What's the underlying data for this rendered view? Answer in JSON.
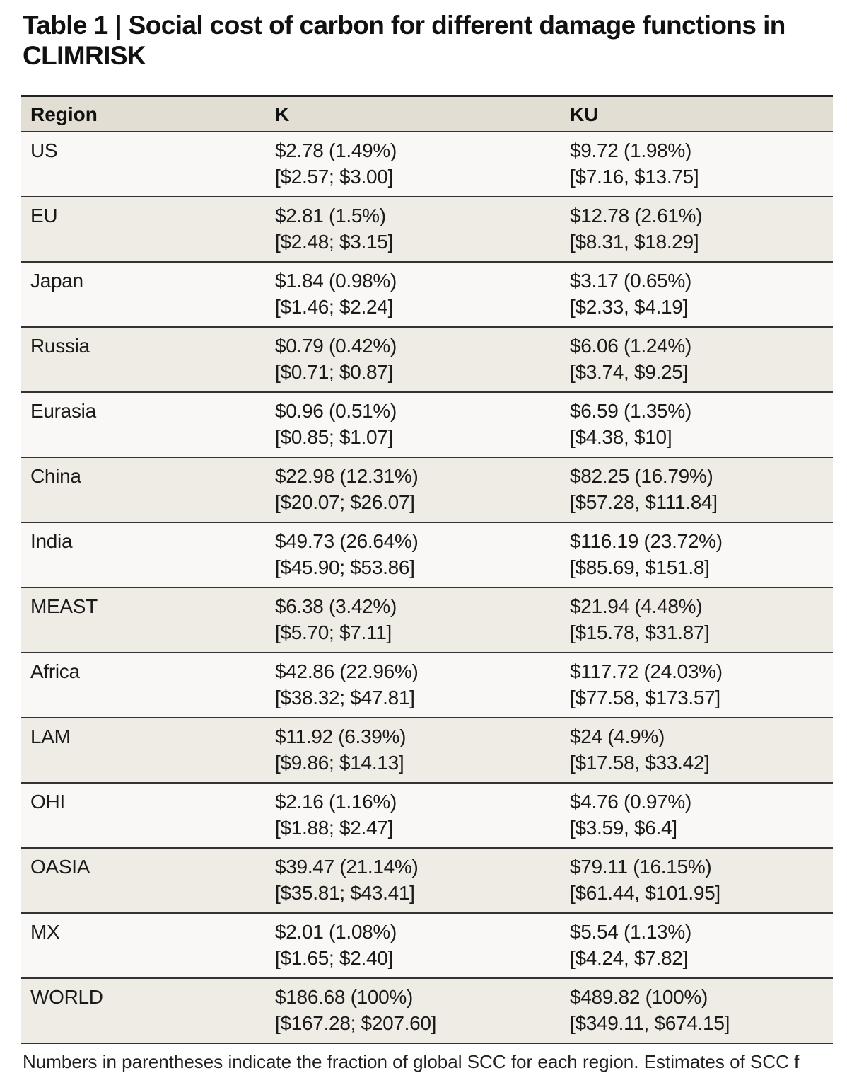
{
  "title": "Table 1 | Social cost of carbon for different damage functions in CLIMRISK",
  "table": {
    "headers": [
      "Region",
      "K",
      "KU"
    ],
    "rows": [
      {
        "region": "US",
        "k_value": "$2.78 (1.49%)",
        "k_range": "[$2.57; $3.00]",
        "ku_value": "$9.72 (1.98%)",
        "ku_range": "[$7.16, $13.75]"
      },
      {
        "region": "EU",
        "k_value": "$2.81 (1.5%)",
        "k_range": "[$2.48; $3.15]",
        "ku_value": "$12.78 (2.61%)",
        "ku_range": "[$8.31, $18.29]"
      },
      {
        "region": "Japan",
        "k_value": "$1.84 (0.98%)",
        "k_range": "[$1.46; $2.24]",
        "ku_value": "$3.17 (0.65%)",
        "ku_range": "[$2.33, $4.19]"
      },
      {
        "region": "Russia",
        "k_value": "$0.79 (0.42%)",
        "k_range": "[$0.71; $0.87]",
        "ku_value": "$6.06 (1.24%)",
        "ku_range": "[$3.74, $9.25]"
      },
      {
        "region": "Eurasia",
        "k_value": "$0.96 (0.51%)",
        "k_range": "[$0.85; $1.07]",
        "ku_value": "$6.59 (1.35%)",
        "ku_range": "[$4.38, $10]"
      },
      {
        "region": "China",
        "k_value": "$22.98 (12.31%)",
        "k_range": "[$20.07; $26.07]",
        "ku_value": "$82.25 (16.79%)",
        "ku_range": "[$57.28, $111.84]"
      },
      {
        "region": "India",
        "k_value": "$49.73 (26.64%)",
        "k_range": "[$45.90; $53.86]",
        "ku_value": "$116.19 (23.72%)",
        "ku_range": "[$85.69, $151.8]"
      },
      {
        "region": "MEAST",
        "k_value": "$6.38 (3.42%)",
        "k_range": "[$5.70; $7.11]",
        "ku_value": "$21.94 (4.48%)",
        "ku_range": "[$15.78, $31.87]"
      },
      {
        "region": "Africa",
        "k_value": "$42.86 (22.96%)",
        "k_range": "[$38.32; $47.81]",
        "ku_value": "$117.72 (24.03%)",
        "ku_range": "[$77.58, $173.57]"
      },
      {
        "region": "LAM",
        "k_value": "$11.92 (6.39%)",
        "k_range": "[$9.86; $14.13]",
        "ku_value": "$24 (4.9%)",
        "ku_range": "[$17.58, $33.42]"
      },
      {
        "region": "OHI",
        "k_value": "$2.16 (1.16%)",
        "k_range": "[$1.88; $2.47]",
        "ku_value": "$4.76 (0.97%)",
        "ku_range": "[$3.59, $6.4]"
      },
      {
        "region": "OASIA",
        "k_value": "$39.47 (21.14%)",
        "k_range": "[$35.81; $43.41]",
        "ku_value": "$79.11 (16.15%)",
        "ku_range": "[$61.44, $101.95]"
      },
      {
        "region": "MX",
        "k_value": "$2.01 (1.08%)",
        "k_range": "[$1.65; $2.40]",
        "ku_value": "$5.54 (1.13%)",
        "ku_range": "[$4.24, $7.82]"
      },
      {
        "region": "WORLD",
        "k_value": "$186.68 (100%)",
        "k_range": "[$167.28; $207.60]",
        "ku_value": "$489.82 (100%)",
        "ku_range": "[$349.11, $674.15]"
      }
    ]
  },
  "footnote": "Numbers in parentheses indicate the fraction of global SCC for each region. Estimates of SCC f"
}
